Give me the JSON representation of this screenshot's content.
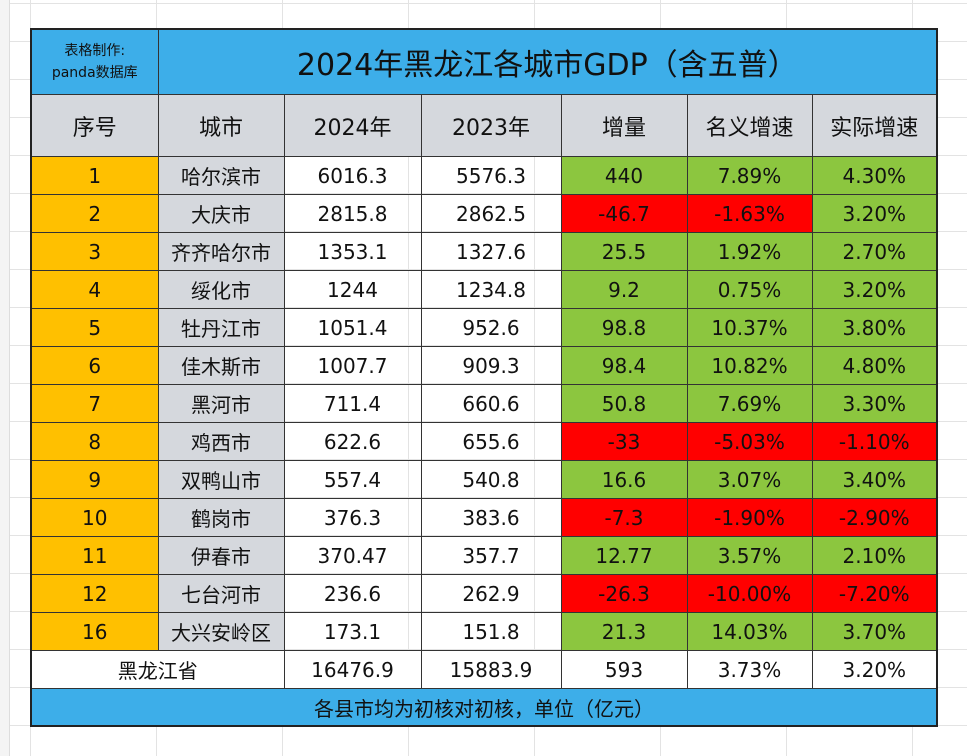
{
  "credit_line1": "表格制作:",
  "credit_line2": "panda数据库",
  "title": "2024年黑龙江各城市GDP（含五普）",
  "headers": [
    "序号",
    "城市",
    "2024年",
    "2023年",
    "增量",
    "名义增速",
    "实际增速"
  ],
  "colors": {
    "title_bg": "#3daee9",
    "index_bg": "#ffc000",
    "positive": "#8cc63f",
    "negative": "#ff0000",
    "header_bg": "#d5d8dd"
  },
  "rows": [
    {
      "idx": "1",
      "city": "哈尔滨市",
      "y2024": "6016.3",
      "y2023": "5576.3",
      "inc": "440",
      "nom": "7.89%",
      "real": "4.30%"
    },
    {
      "idx": "2",
      "city": "大庆市",
      "y2024": "2815.8",
      "y2023": "2862.5",
      "inc": "-46.7",
      "nom": "-1.63%",
      "real": "3.20%"
    },
    {
      "idx": "3",
      "city": "齐齐哈尔市",
      "y2024": "1353.1",
      "y2023": "1327.6",
      "inc": "25.5",
      "nom": "1.92%",
      "real": "2.70%"
    },
    {
      "idx": "4",
      "city": "绥化市",
      "y2024": "1244",
      "y2023": "1234.8",
      "inc": "9.2",
      "nom": "0.75%",
      "real": "3.20%"
    },
    {
      "idx": "5",
      "city": "牡丹江市",
      "y2024": "1051.4",
      "y2023": "952.6",
      "inc": "98.8",
      "nom": "10.37%",
      "real": "3.80%"
    },
    {
      "idx": "6",
      "city": "佳木斯市",
      "y2024": "1007.7",
      "y2023": "909.3",
      "inc": "98.4",
      "nom": "10.82%",
      "real": "4.80%"
    },
    {
      "idx": "7",
      "city": "黑河市",
      "y2024": "711.4",
      "y2023": "660.6",
      "inc": "50.8",
      "nom": "7.69%",
      "real": "3.30%"
    },
    {
      "idx": "8",
      "city": "鸡西市",
      "y2024": "622.6",
      "y2023": "655.6",
      "inc": "-33",
      "nom": "-5.03%",
      "real": "-1.10%"
    },
    {
      "idx": "9",
      "city": "双鸭山市",
      "y2024": "557.4",
      "y2023": "540.8",
      "inc": "16.6",
      "nom": "3.07%",
      "real": "3.40%"
    },
    {
      "idx": "10",
      "city": "鹤岗市",
      "y2024": "376.3",
      "y2023": "383.6",
      "inc": "-7.3",
      "nom": "-1.90%",
      "real": "-2.90%"
    },
    {
      "idx": "11",
      "city": "伊春市",
      "y2024": "370.47",
      "y2023": "357.7",
      "inc": "12.77",
      "nom": "3.57%",
      "real": "2.10%"
    },
    {
      "idx": "12",
      "city": "七台河市",
      "y2024": "236.6",
      "y2023": "262.9",
      "inc": "-26.3",
      "nom": "-10.00%",
      "real": "-7.20%"
    },
    {
      "idx": "16",
      "city": "大兴安岭区",
      "y2024": "173.1",
      "y2023": "151.8",
      "inc": "21.3",
      "nom": "14.03%",
      "real": "3.70%"
    }
  ],
  "total": {
    "label": "黑龙江省",
    "y2024": "16476.9",
    "y2023": "15883.9",
    "inc": "593",
    "nom": "3.73%",
    "real": "3.20%"
  },
  "footer": "各县市均为初核对初核，单位（亿元）"
}
